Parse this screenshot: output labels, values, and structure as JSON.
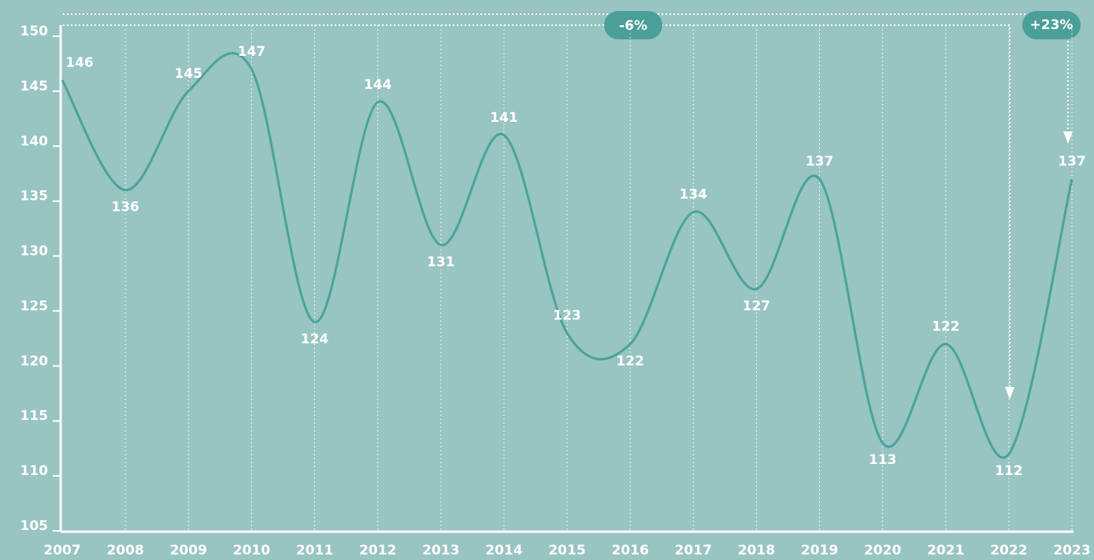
{
  "chart_data": {
    "type": "line",
    "categories": [
      "2007",
      "2008",
      "2009",
      "2010",
      "2011",
      "2012",
      "2013",
      "2014",
      "2015",
      "2016",
      "2017",
      "2018",
      "2019",
      "2020",
      "2021",
      "2022",
      "2023"
    ],
    "series": [
      {
        "color": "#4aa29c",
        "values": [
          146,
          136,
          145,
          147,
          124,
          144,
          131,
          141,
          123,
          122,
          134,
          127,
          137,
          113,
          122,
          112,
          137
        ]
      }
    ],
    "ylim": [
      105,
      150
    ],
    "yticks": [
      105,
      110,
      115,
      120,
      125,
      130,
      135,
      140,
      145,
      150
    ],
    "grid": true,
    "annotations": [
      "-6%",
      "+23%"
    ]
  }
}
